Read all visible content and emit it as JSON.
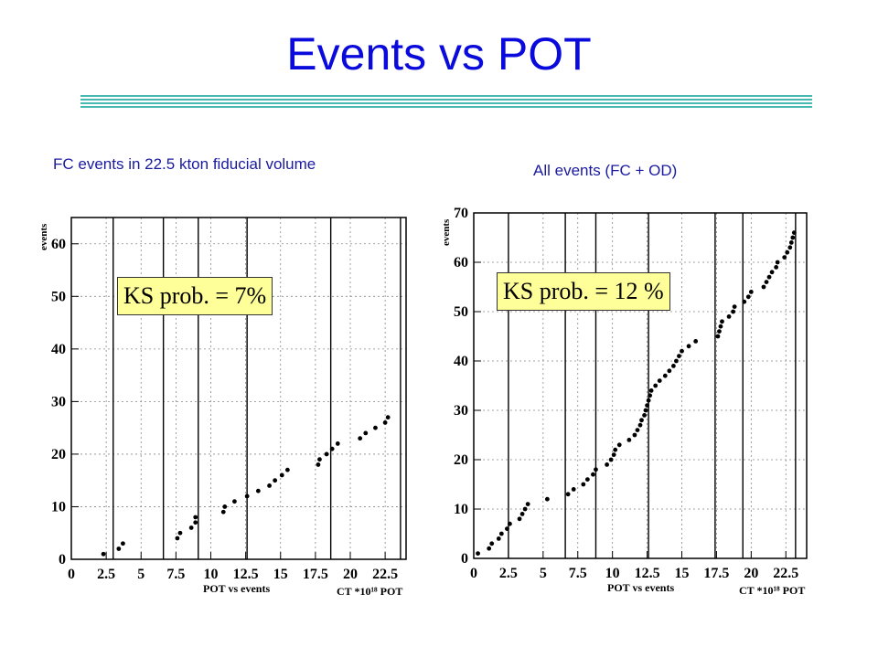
{
  "title": "Events vs POT",
  "colors": {
    "title": "#0a0adc",
    "subtitle": "#1a1aa0",
    "rule": "#48b8b0",
    "ks_box": "#ffff99",
    "marker": "#000000"
  },
  "chart_data": [
    {
      "type": "scatter",
      "subtitle": "FC events in 22.5 kton fiducial volume",
      "ylabel": "events",
      "xlabel": "POT vs events",
      "unit_label": "CT *10¹⁸ POT",
      "xlim": [
        0,
        24
      ],
      "ylim": [
        0,
        65
      ],
      "xticks": [
        0,
        2.5,
        5,
        7.5,
        10,
        12.5,
        15,
        17.5,
        20,
        22.5
      ],
      "xtick_labels": [
        "0",
        "2.5",
        "5",
        "7.5",
        "10",
        "12.5",
        "15",
        "17.5",
        "20",
        "22.5"
      ],
      "yticks": [
        0,
        10,
        20,
        30,
        40,
        50,
        60
      ],
      "ytick_labels": [
        "0",
        "10",
        "20",
        "30",
        "40",
        "50",
        "60"
      ],
      "run_boundaries": [
        3.0,
        6.6,
        9.1,
        12.6,
        18.6,
        23.6
      ],
      "annotation": "KS prob. = 7%",
      "grid": true,
      "points": [
        [
          2.3,
          1
        ],
        [
          3.4,
          2
        ],
        [
          3.7,
          3
        ],
        [
          7.6,
          4
        ],
        [
          7.8,
          5
        ],
        [
          8.6,
          6
        ],
        [
          8.9,
          7
        ],
        [
          8.9,
          8
        ],
        [
          10.9,
          9
        ],
        [
          11.0,
          10
        ],
        [
          11.7,
          11
        ],
        [
          12.6,
          12
        ],
        [
          13.4,
          13
        ],
        [
          14.2,
          14
        ],
        [
          14.6,
          15
        ],
        [
          15.1,
          16
        ],
        [
          15.5,
          17
        ],
        [
          17.7,
          18
        ],
        [
          17.8,
          19
        ],
        [
          18.3,
          20
        ],
        [
          18.7,
          21
        ],
        [
          19.1,
          22
        ],
        [
          20.7,
          23
        ],
        [
          21.1,
          24
        ],
        [
          21.8,
          25
        ],
        [
          22.5,
          26
        ],
        [
          22.7,
          27
        ]
      ]
    },
    {
      "type": "scatter",
      "subtitle": "All events (FC + OD)",
      "ylabel": "events",
      "xlabel": "POT vs events",
      "unit_label": "CT *10¹⁸ POT",
      "xlim": [
        0,
        24
      ],
      "ylim": [
        0,
        70
      ],
      "xticks": [
        0,
        2.5,
        5,
        7.5,
        10,
        12.5,
        15,
        17.5,
        20,
        22.5
      ],
      "xtick_labels": [
        "0",
        "2.5",
        "5",
        "7.5",
        "10",
        "12.5",
        "15",
        "17.5",
        "20",
        "22.5"
      ],
      "yticks": [
        0,
        10,
        20,
        30,
        40,
        50,
        60,
        70
      ],
      "ytick_labels": [
        "0",
        "10",
        "20",
        "30",
        "40",
        "50",
        "60",
        "70"
      ],
      "run_boundaries": [
        2.5,
        6.6,
        8.8,
        12.6,
        17.4,
        19.4,
        23.2
      ],
      "annotation": "KS prob. = 12 %",
      "grid": true,
      "points": [
        [
          0.3,
          1
        ],
        [
          1.1,
          2
        ],
        [
          1.3,
          3
        ],
        [
          1.8,
          4
        ],
        [
          2.0,
          5
        ],
        [
          2.4,
          6
        ],
        [
          2.6,
          7
        ],
        [
          3.3,
          8
        ],
        [
          3.5,
          9
        ],
        [
          3.7,
          10
        ],
        [
          3.9,
          11
        ],
        [
          5.3,
          12
        ],
        [
          6.8,
          13
        ],
        [
          7.2,
          14
        ],
        [
          7.9,
          15
        ],
        [
          8.2,
          16
        ],
        [
          8.6,
          17
        ],
        [
          8.8,
          18
        ],
        [
          9.6,
          19
        ],
        [
          9.9,
          20
        ],
        [
          10.1,
          21
        ],
        [
          10.2,
          22
        ],
        [
          10.5,
          23
        ],
        [
          11.2,
          24
        ],
        [
          11.6,
          25
        ],
        [
          11.8,
          26
        ],
        [
          12.0,
          27
        ],
        [
          12.1,
          28
        ],
        [
          12.3,
          29
        ],
        [
          12.4,
          30
        ],
        [
          12.5,
          31
        ],
        [
          12.6,
          32
        ],
        [
          12.7,
          33
        ],
        [
          12.8,
          34
        ],
        [
          13.1,
          35
        ],
        [
          13.4,
          36
        ],
        [
          13.8,
          37
        ],
        [
          14.1,
          38
        ],
        [
          14.4,
          39
        ],
        [
          14.6,
          40
        ],
        [
          14.8,
          41
        ],
        [
          15.0,
          42
        ],
        [
          15.5,
          43
        ],
        [
          16.0,
          44
        ],
        [
          17.6,
          45
        ],
        [
          17.7,
          46
        ],
        [
          17.8,
          47
        ],
        [
          17.9,
          48
        ],
        [
          18.4,
          49
        ],
        [
          18.7,
          50
        ],
        [
          18.8,
          51
        ],
        [
          19.5,
          52
        ],
        [
          19.8,
          53
        ],
        [
          20.0,
          54
        ],
        [
          20.9,
          55
        ],
        [
          21.1,
          56
        ],
        [
          21.3,
          57
        ],
        [
          21.5,
          58
        ],
        [
          21.8,
          59
        ],
        [
          21.9,
          60
        ],
        [
          22.4,
          61
        ],
        [
          22.6,
          62
        ],
        [
          22.8,
          63
        ],
        [
          22.9,
          64
        ],
        [
          23.0,
          65
        ],
        [
          23.1,
          66
        ]
      ]
    }
  ]
}
